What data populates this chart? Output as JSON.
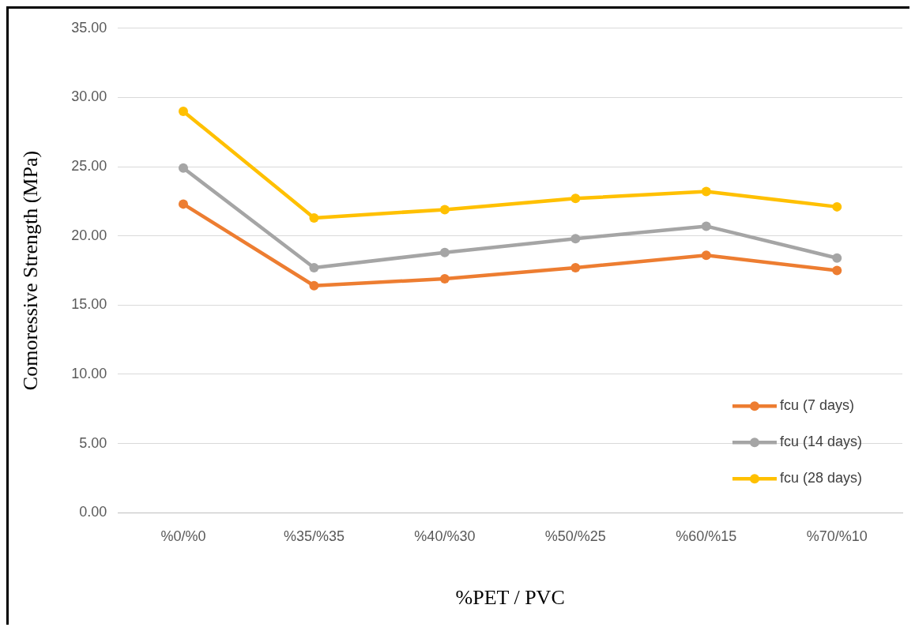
{
  "chart_data": {
    "type": "line",
    "xlabel": "%PET / PVC",
    "ylabel": "Comoressive Strength (MPa)",
    "categories": [
      "%0/%0",
      "%35/%35",
      "%40/%30",
      "%50/%25",
      "%60/%15",
      "%70/%10"
    ],
    "series": [
      {
        "name": "fcu (7 days)",
        "color": "#ed7d31",
        "values": [
          22.3,
          16.4,
          16.9,
          17.7,
          18.6,
          17.5
        ]
      },
      {
        "name": "fcu (14 days)",
        "color": "#a5a5a5",
        "values": [
          24.9,
          17.7,
          18.8,
          19.8,
          20.7,
          18.4
        ]
      },
      {
        "name": "fcu (28 days)",
        "color": "#ffc000",
        "values": [
          29.0,
          21.3,
          21.9,
          22.7,
          23.2,
          22.1
        ]
      }
    ],
    "ylim": [
      0,
      35
    ],
    "yticks": [
      {
        "value": 0,
        "label": "0.00"
      },
      {
        "value": 5,
        "label": "5.00"
      },
      {
        "value": 10,
        "label": "10.00"
      },
      {
        "value": 15,
        "label": "15.00"
      },
      {
        "value": 20,
        "label": "20.00"
      },
      {
        "value": 25,
        "label": "25.00"
      },
      {
        "value": 30,
        "label": "30.00"
      },
      {
        "value": 35,
        "label": "35.00"
      }
    ],
    "grid": "y",
    "legend": "bottom right",
    "marker": "circle",
    "line_style": "solid"
  }
}
